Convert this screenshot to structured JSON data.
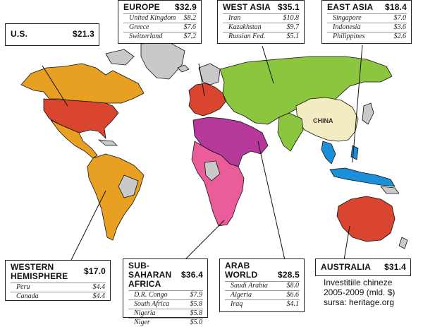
{
  "colors": {
    "us": "#d9452e",
    "western_hemisphere": "#e8a022",
    "europe": "#d9452e",
    "west_asia": "#8cc63e",
    "east_asia": "#1b8fd8",
    "china": "#f3ecc2",
    "arab_world": "#b5389a",
    "sub_saharan_africa": "#ea5d9a",
    "australia": "#d9452e",
    "no_data": "#c9c9c9",
    "ocean": "#ffffff",
    "border": "#111111"
  },
  "map": {
    "china_label": "CHINA"
  },
  "regions": {
    "us": {
      "name": "U.S.",
      "total": "$21.3",
      "rows": []
    },
    "europe": {
      "name": "EUROPE",
      "total": "$32.9",
      "rows": [
        {
          "country": "United Kingdom",
          "value": "$8.2"
        },
        {
          "country": "Greece",
          "value": "$7.6"
        },
        {
          "country": "Switzerland",
          "value": "$7.2"
        }
      ]
    },
    "west_asia": {
      "name": "WEST ASIA",
      "total": "$35.1",
      "rows": [
        {
          "country": "Iran",
          "value": "$10.8"
        },
        {
          "country": "Kazakhstan",
          "value": "$9.7"
        },
        {
          "country": "Russian Fed.",
          "value": "$5.1"
        }
      ]
    },
    "east_asia": {
      "name": "EAST ASIA",
      "total": "$18.4",
      "rows": [
        {
          "country": "Singapore",
          "value": "$7.0"
        },
        {
          "country": "Indonesia",
          "value": "$3.6"
        },
        {
          "country": "Philippines",
          "value": "$2.6"
        }
      ]
    },
    "western_hemisphere": {
      "name": "WESTERN\nHEMISPHERE",
      "total": "$17.0",
      "rows": [
        {
          "country": "Peru",
          "value": "$4.4"
        },
        {
          "country": "Canada",
          "value": "$4.4"
        }
      ]
    },
    "sub_saharan_africa": {
      "name": "SUB-SAHARAN\nAFRICA",
      "total": "$36.4",
      "rows": [
        {
          "country": "D.R. Congo",
          "value": "$7.9"
        },
        {
          "country": "South Africa",
          "value": "$5.8"
        },
        {
          "country": "Nigeria",
          "value": "$5.8"
        },
        {
          "country": "Niger",
          "value": "$5.0"
        }
      ]
    },
    "arab_world": {
      "name": "ARAB\nWORLD",
      "total": "$28.5",
      "rows": [
        {
          "country": "Saudi Arabia",
          "value": "$8.0"
        },
        {
          "country": "Algeria",
          "value": "$6.6"
        },
        {
          "country": "Iraq",
          "value": "$4.1"
        }
      ]
    },
    "australia": {
      "name": "AUSTRALIA",
      "total": "$31.4",
      "rows": []
    }
  },
  "caption": {
    "line1": "Investitiile chineze",
    "line2": "2005-2009 (mld. $)",
    "line3": "sursa: heritage.org"
  }
}
